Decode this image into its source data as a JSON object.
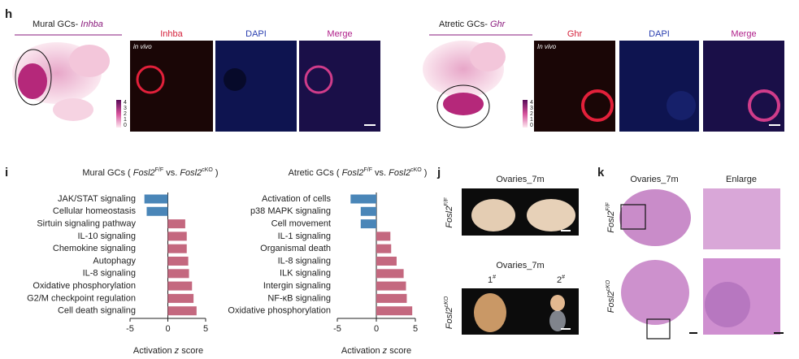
{
  "panel_h": {
    "label": "h",
    "left": {
      "title": "Mural GCs-",
      "gene": "Inhba",
      "channels": [
        "Inhba",
        "DAPI",
        "Merge"
      ],
      "note": "in vivo",
      "colorbar_ticks": [
        "4",
        "3",
        "2",
        "1",
        "0"
      ]
    },
    "right": {
      "title": "Atretic GCs-",
      "gene": "Ghr",
      "channels": [
        "Ghr",
        "DAPI",
        "Merge"
      ],
      "note": "In vivo",
      "colorbar_ticks": [
        "4",
        "3",
        "2",
        "1",
        "0"
      ]
    }
  },
  "panel_i": {
    "label": "i"
  },
  "chart_data": [
    {
      "type": "bar",
      "orientation": "horizontal",
      "title": {
        "prefix": "Mural GCs (",
        "gene1": "Fosl2",
        "sup1": "F/F",
        "middle": "vs.",
        "gene2": "Fosl2",
        "sup2": "cKO",
        "suffix": ")"
      },
      "x_label": {
        "prefix": "Activation",
        "italic": "z",
        "suffix": "score"
      },
      "categories": [
        "JAK/STAT signaling",
        "Cellular homeostasis",
        "Sirtuin signaling pathway",
        "IL-10 signaling",
        "Chemokine signaling",
        "Autophagy",
        "IL-8 signaling",
        "Oxidative phosphorylation",
        "G2/M checkpoint regulation",
        "Cell death signaling"
      ],
      "values": [
        -3.1,
        -2.8,
        2.3,
        2.5,
        2.5,
        2.7,
        2.8,
        3.2,
        3.4,
        3.8
      ],
      "color_negative": "#4a86b8",
      "color_positive": "#c4687f",
      "xlim": [
        -5,
        5
      ],
      "xticks": [
        -5,
        0,
        5
      ]
    },
    {
      "type": "bar",
      "orientation": "horizontal",
      "title": {
        "prefix": "Atretic GCs (",
        "gene1": "Fosl2",
        "sup1": "F/F",
        "middle": "vs.",
        "gene2": "Fosl2",
        "sup2": "cKO",
        "suffix": ")"
      },
      "x_label": {
        "prefix": "Activation",
        "italic": "z",
        "suffix": "score"
      },
      "categories": [
        "Activation of cells",
        "p38 MAPK signaling",
        "Cell movement",
        "IL-1 signaling",
        "Organismal death",
        "IL-8 signaling",
        "ILK signaling",
        "Intergin signaling",
        "NF-κB signaling",
        "Oxidative phosphorylation"
      ],
      "values": [
        -3.3,
        -2.0,
        -2.0,
        1.8,
        1.9,
        2.6,
        3.5,
        3.8,
        3.9,
        4.6
      ],
      "color_negative": "#4a86b8",
      "color_positive": "#c4687f",
      "xlim": [
        -5,
        5
      ],
      "xticks": [
        -5,
        0,
        5
      ]
    }
  ],
  "panel_j": {
    "label": "j",
    "title_top": "Ovaries_7m",
    "title_bottom": "Ovaries_7m",
    "samples": [
      {
        "number": "1",
        "mark": "#"
      },
      {
        "number": "2",
        "mark": "#"
      }
    ],
    "genotype_top": {
      "gene": "Fosl2",
      "sup": "F/F"
    },
    "genotype_bottom": {
      "gene": "Fosl2",
      "sup": "cKO"
    }
  },
  "panel_k": {
    "label": "k",
    "col1": "Ovaries_7m",
    "col2": "Enlarge",
    "genotype_top": {
      "gene": "Fosl2",
      "sup": "F/F"
    },
    "genotype_bottom": {
      "gene": "Fosl2",
      "sup": "cKO"
    }
  }
}
